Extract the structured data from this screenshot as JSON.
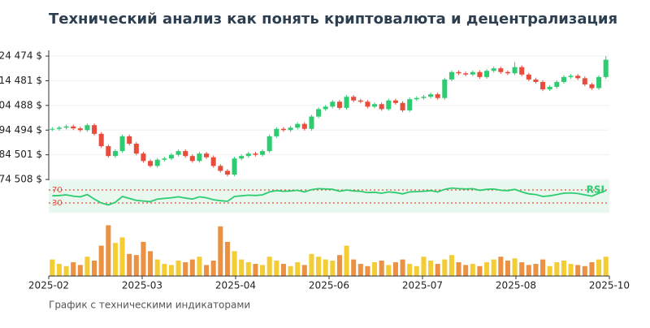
{
  "chart_data": {
    "type": "candlestick",
    "title": "Технический анализ как понять криптовалюта и децентрализация",
    "subtitle": "График с техническими индикаторами",
    "ylim": [
      74200,
      126800
    ],
    "yticks": [
      {
        "value": 74508,
        "label": "74 508 $"
      },
      {
        "value": 84501,
        "label": "84 501 $"
      },
      {
        "value": 94494,
        "label": "94 494 $"
      },
      {
        "value": 104488,
        "label": "104 488 $"
      },
      {
        "value": 114481,
        "label": "114 481 $"
      },
      {
        "value": 124474,
        "label": "124 474 $"
      }
    ],
    "grid": true,
    "xticks": [
      "2025-02",
      "2025-03",
      "2025-04",
      "2025-06",
      "2025-07",
      "2025-08",
      "2025-10"
    ],
    "up_color": "#2ecc71",
    "down_color": "#e74c3c",
    "open": [
      94800,
      95000,
      95500,
      96000,
      95200,
      94500,
      96500,
      93000,
      88000,
      84000,
      86000,
      92000,
      89000,
      85000,
      82000,
      80000,
      82500,
      83000,
      84500,
      86000,
      84000,
      82000,
      85000,
      83500,
      80000,
      78000,
      76500,
      83000,
      84000,
      85000,
      84500,
      86000,
      92000,
      95000,
      94500,
      95500,
      97000,
      95000,
      100000,
      103000,
      104000,
      106000,
      103500,
      108000,
      106500,
      106000,
      104000,
      105000,
      103000,
      106500,
      105500,
      102500,
      107000,
      107500,
      108000,
      109000,
      107500,
      115000,
      118000,
      117500,
      117000,
      118000,
      116000,
      118500,
      119500,
      118000,
      117500,
      120000,
      117000,
      115000,
      114000,
      111000,
      112000,
      114000,
      116000,
      116500,
      115500,
      113000,
      111500,
      116000
    ],
    "high": [
      95700,
      96200,
      96700,
      96700,
      95900,
      97200,
      97200,
      93700,
      88700,
      86700,
      92700,
      92700,
      89700,
      85700,
      82700,
      83200,
      83700,
      85200,
      86700,
      86700,
      84700,
      85700,
      85700,
      84200,
      80700,
      78700,
      83700,
      84700,
      85700,
      85700,
      86700,
      92700,
      95700,
      95700,
      96200,
      97700,
      97700,
      100700,
      103700,
      104700,
      106700,
      106700,
      108700,
      108700,
      107200,
      106700,
      105700,
      105700,
      107200,
      107200,
      106200,
      107700,
      108200,
      108700,
      109700,
      109700,
      115700,
      118700,
      118700,
      118200,
      118700,
      118700,
      119200,
      120200,
      120200,
      118700,
      122000,
      120700,
      117700,
      115700,
      114700,
      112700,
      114700,
      116700,
      117200,
      117200,
      116200,
      113700,
      116700,
      124500
    ],
    "low": [
      94100,
      94300,
      94800,
      94500,
      93800,
      93800,
      92300,
      87300,
      83300,
      83300,
      85300,
      88300,
      84300,
      81300,
      79300,
      79300,
      81800,
      82300,
      83800,
      83300,
      81300,
      81300,
      82800,
      79300,
      77300,
      75800,
      75800,
      82300,
      83300,
      83800,
      83800,
      85300,
      91300,
      93800,
      93800,
      94800,
      94300,
      94300,
      99300,
      102300,
      103300,
      102800,
      102800,
      105800,
      105300,
      103300,
      103300,
      102300,
      102300,
      104800,
      101800,
      101800,
      106300,
      106800,
      107300,
      106800,
      106800,
      114300,
      116800,
      116300,
      116300,
      115300,
      115300,
      117800,
      117300,
      116800,
      116800,
      116300,
      114300,
      113300,
      110300,
      110300,
      111300,
      113300,
      115300,
      114800,
      112300,
      110800,
      110800,
      115300
    ],
    "close": [
      95000,
      95500,
      96000,
      95200,
      94500,
      96500,
      93000,
      88000,
      84000,
      86000,
      92000,
      89000,
      85000,
      82000,
      80000,
      82500,
      83000,
      84500,
      86000,
      84000,
      82000,
      85000,
      83500,
      80000,
      78000,
      76500,
      83000,
      84000,
      85000,
      84500,
      86000,
      92000,
      95000,
      94500,
      95500,
      97000,
      95000,
      100000,
      103000,
      104000,
      106000,
      103500,
      108000,
      106500,
      106000,
      104000,
      105000,
      103000,
      106500,
      105500,
      102500,
      107000,
      107500,
      108000,
      109000,
      107500,
      115000,
      118000,
      117500,
      117000,
      118000,
      116000,
      118500,
      119500,
      118000,
      117500,
      120000,
      117000,
      115000,
      114000,
      111000,
      112000,
      114000,
      116000,
      116500,
      115500,
      113000,
      111500,
      116000,
      123000
    ],
    "rsi": {
      "label": "RSI",
      "color": "#2ecc71",
      "level_color": "#e74c3c",
      "background": "#e8f8ee",
      "ylim": [
        0,
        100
      ],
      "levels": [
        70,
        30
      ],
      "values": [
        52,
        53,
        55,
        51,
        49,
        56,
        42,
        30,
        24,
        32,
        50,
        44,
        38,
        36,
        34,
        42,
        44,
        46,
        49,
        45,
        42,
        49,
        46,
        40,
        37,
        35,
        50,
        52,
        54,
        53,
        55,
        64,
        68,
        66,
        67,
        69,
        64,
        71,
        74,
        73,
        72,
        66,
        70,
        67,
        66,
        62,
        63,
        60,
        64,
        62,
        58,
        64,
        65,
        66,
        68,
        64,
        72,
        76,
        74,
        73,
        74,
        69,
        72,
        73,
        69,
        68,
        72,
        64,
        58,
        56,
        50,
        52,
        56,
        60,
        61,
        59,
        55,
        51,
        60,
        68
      ]
    },
    "volume": {
      "ylim": [
        0,
        100
      ],
      "up_color": "#f1c40f",
      "down_color": "#e67e22",
      "values": [
        30,
        22,
        18,
        25,
        20,
        35,
        28,
        55,
        92,
        60,
        70,
        40,
        38,
        62,
        45,
        30,
        22,
        20,
        28,
        25,
        30,
        35,
        20,
        28,
        90,
        62,
        45,
        30,
        25,
        22,
        20,
        35,
        28,
        22,
        18,
        25,
        20,
        40,
        35,
        30,
        28,
        38,
        55,
        30,
        22,
        18,
        25,
        28,
        20,
        25,
        30,
        22,
        18,
        35,
        28,
        22,
        30,
        38,
        25,
        20,
        22,
        18,
        25,
        30,
        35,
        28,
        32,
        25,
        20,
        22,
        30,
        18,
        25,
        28,
        22,
        20,
        18,
        25,
        30,
        35
      ]
    }
  }
}
